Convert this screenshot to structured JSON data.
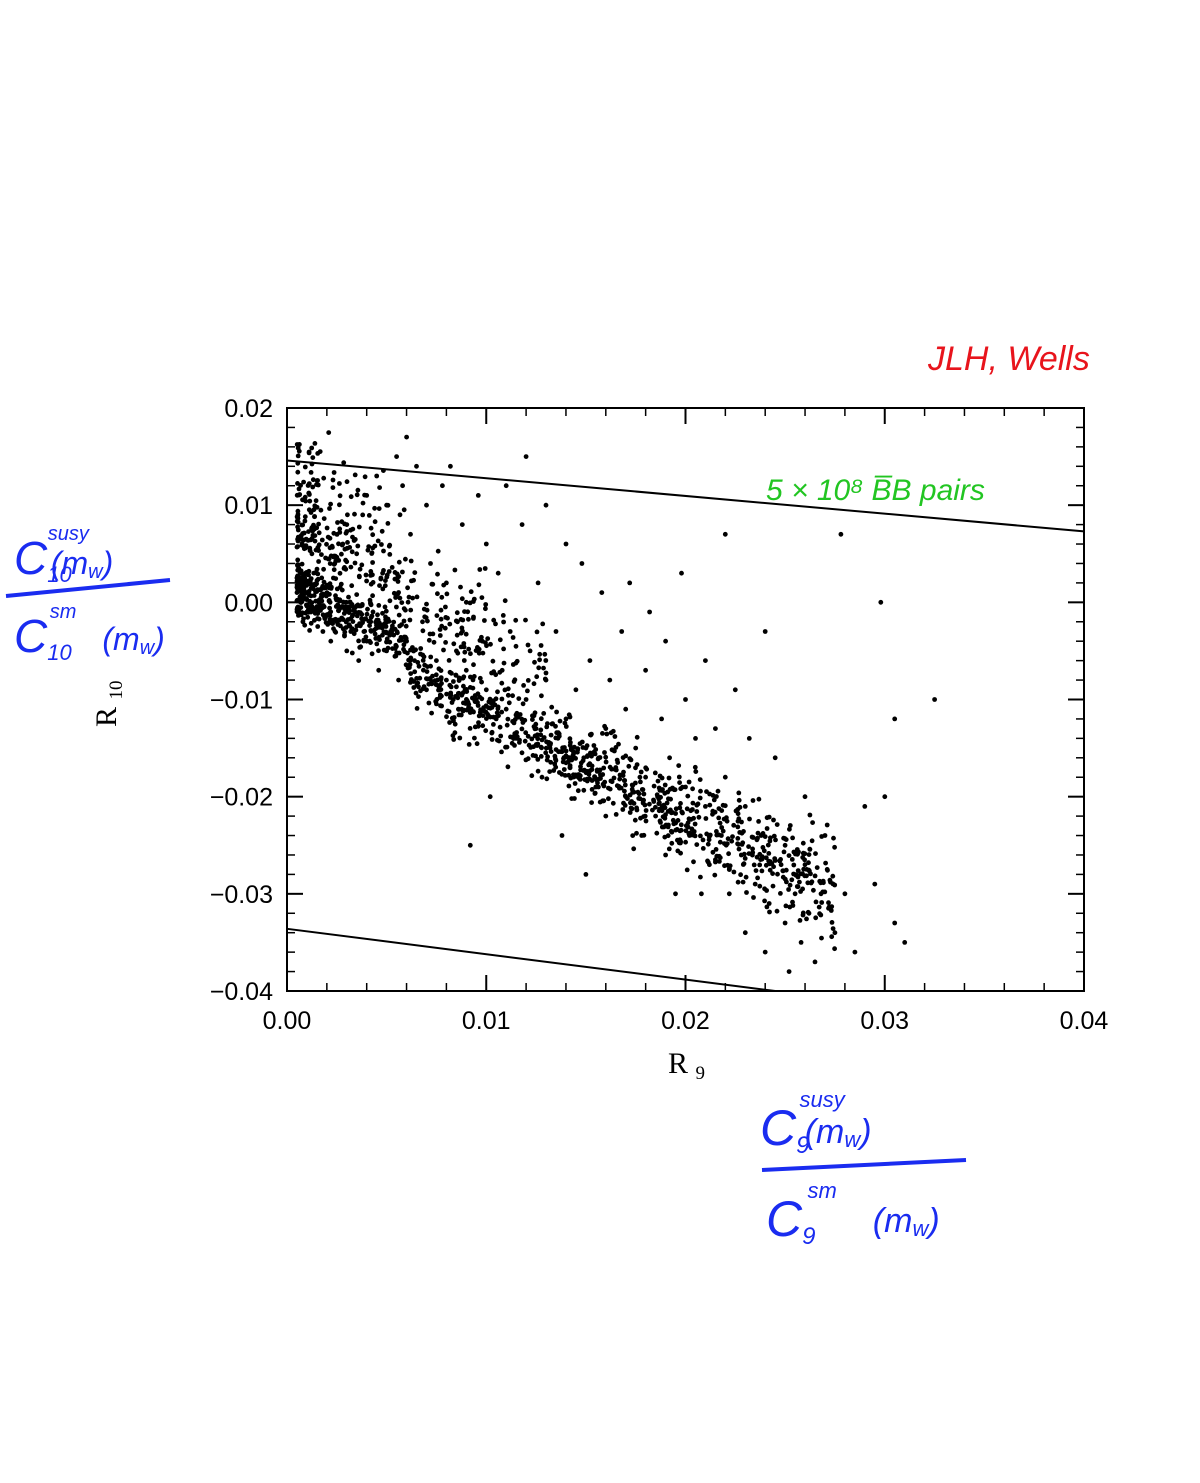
{
  "chart_data": {
    "type": "scatter",
    "xlabel": "R",
    "xlabel_subscript": "9",
    "ylabel": "R",
    "ylabel_subscript": "10",
    "xlim": [
      0.0,
      0.04
    ],
    "ylim": [
      -0.04,
      0.02
    ],
    "x_ticks": [
      0.0,
      0.01,
      0.02,
      0.03,
      0.04
    ],
    "x_tick_labels": [
      "0.00",
      "0.01",
      "0.02",
      "0.03",
      "0.04"
    ],
    "y_ticks": [
      -0.04,
      -0.03,
      -0.02,
      -0.01,
      0.0,
      0.01,
      0.02
    ],
    "y_tick_labels": [
      "−0.04",
      "−0.03",
      "−0.02",
      "−0.01",
      "0.00",
      "0.01",
      "0.02"
    ],
    "grid": false,
    "bound_lines": [
      {
        "label": "upper",
        "points": [
          [
            0.0,
            0.0146
          ],
          [
            0.04,
            0.0073
          ]
        ]
      },
      {
        "label": "lower",
        "points": [
          [
            0.0,
            -0.0336
          ],
          [
            0.0245,
            -0.04
          ]
        ]
      }
    ],
    "annotation": {
      "text": "5 × 10⁸ B̅B pairs",
      "color": "#22c522"
    },
    "points_cluster_approximation": [
      [
        0.0005,
        0.001
      ],
      [
        0.0008,
        -0.002
      ],
      [
        0.001,
        0.002
      ],
      [
        0.0012,
        -0.001
      ],
      [
        0.0015,
        0.003
      ],
      [
        0.0016,
        0.0
      ],
      [
        0.0018,
        -0.003
      ],
      [
        0.002,
        0.001
      ],
      [
        0.0022,
        -0.004
      ],
      [
        0.0024,
        0.004
      ],
      [
        0.0025,
        -0.002
      ],
      [
        0.0028,
        0.006
      ],
      [
        0.003,
        -0.005
      ],
      [
        0.003,
        0.008
      ],
      [
        0.0032,
        -0.003
      ],
      [
        0.0035,
        0.005
      ],
      [
        0.0036,
        -0.006
      ],
      [
        0.0038,
        0.009
      ],
      [
        0.004,
        -0.004
      ],
      [
        0.004,
        0.011
      ],
      [
        0.0042,
        -0.002
      ],
      [
        0.0045,
        0.013
      ],
      [
        0.0046,
        -0.007
      ],
      [
        0.0048,
        0.003
      ],
      [
        0.005,
        -0.005
      ],
      [
        0.005,
        0.01
      ],
      [
        0.0052,
        -0.003
      ],
      [
        0.0055,
        0.015
      ],
      [
        0.0056,
        -0.008
      ],
      [
        0.0058,
        0.012
      ],
      [
        0.006,
        -0.004
      ],
      [
        0.006,
        0.017
      ],
      [
        0.0062,
        0.007
      ],
      [
        0.0064,
        -0.006
      ],
      [
        0.0065,
        0.014
      ],
      [
        0.0068,
        -0.002
      ],
      [
        0.007,
        0.01
      ],
      [
        0.007,
        -0.009
      ],
      [
        0.0072,
        0.004
      ],
      [
        0.0075,
        -0.006
      ],
      [
        0.0078,
        0.012
      ],
      [
        0.008,
        -0.008
      ],
      [
        0.008,
        0.002
      ],
      [
        0.0082,
        0.014
      ],
      [
        0.0085,
        -0.005
      ],
      [
        0.0086,
        -0.011
      ],
      [
        0.0088,
        0.008
      ],
      [
        0.009,
        -0.007
      ],
      [
        0.009,
        0.0
      ],
      [
        0.0092,
        -0.025
      ],
      [
        0.0095,
        -0.01
      ],
      [
        0.0096,
        0.011
      ],
      [
        0.0098,
        -0.004
      ],
      [
        0.01,
        -0.009
      ],
      [
        0.01,
        0.006
      ],
      [
        0.0102,
        -0.02
      ],
      [
        0.0105,
        -0.012
      ],
      [
        0.0106,
        0.003
      ],
      [
        0.0108,
        -0.007
      ],
      [
        0.011,
        0.012
      ],
      [
        0.011,
        -0.011
      ],
      [
        0.0112,
        -0.003
      ],
      [
        0.0115,
        -0.014
      ],
      [
        0.0118,
        0.008
      ],
      [
        0.012,
        -0.01
      ],
      [
        0.012,
        0.015
      ],
      [
        0.0122,
        -0.005
      ],
      [
        0.0125,
        -0.013
      ],
      [
        0.0126,
        0.002
      ],
      [
        0.0128,
        -0.018
      ],
      [
        0.013,
        -0.008
      ],
      [
        0.013,
        0.01
      ],
      [
        0.0132,
        -0.015
      ],
      [
        0.0135,
        -0.003
      ],
      [
        0.0138,
        -0.024
      ],
      [
        0.014,
        -0.012
      ],
      [
        0.014,
        0.006
      ],
      [
        0.0142,
        -0.017
      ],
      [
        0.0145,
        -0.009
      ],
      [
        0.0148,
        0.004
      ],
      [
        0.015,
        -0.015
      ],
      [
        0.015,
        -0.028
      ],
      [
        0.0152,
        -0.006
      ],
      [
        0.0155,
        -0.019
      ],
      [
        0.0158,
        0.001
      ],
      [
        0.016,
        -0.013
      ],
      [
        0.016,
        -0.022
      ],
      [
        0.0162,
        -0.008
      ],
      [
        0.0165,
        -0.017
      ],
      [
        0.0168,
        -0.003
      ],
      [
        0.017,
        -0.02
      ],
      [
        0.017,
        -0.011
      ],
      [
        0.0172,
        0.002
      ],
      [
        0.0175,
        -0.015
      ],
      [
        0.0178,
        -0.024
      ],
      [
        0.018,
        -0.007
      ],
      [
        0.018,
        -0.018
      ],
      [
        0.0182,
        -0.001
      ],
      [
        0.0185,
        -0.022
      ],
      [
        0.0188,
        -0.012
      ],
      [
        0.019,
        -0.026
      ],
      [
        0.019,
        -0.004
      ],
      [
        0.0192,
        -0.016
      ],
      [
        0.0195,
        -0.03
      ],
      [
        0.0198,
        0.003
      ],
      [
        0.02,
        -0.019
      ],
      [
        0.02,
        -0.01
      ],
      [
        0.0202,
        -0.024
      ],
      [
        0.0205,
        -0.014
      ],
      [
        0.0208,
        -0.03
      ],
      [
        0.021,
        -0.021
      ],
      [
        0.021,
        -0.006
      ],
      [
        0.0212,
        -0.027
      ],
      [
        0.0215,
        -0.013
      ],
      [
        0.0218,
        -0.024
      ],
      [
        0.022,
        0.007
      ],
      [
        0.022,
        -0.018
      ],
      [
        0.0222,
        -0.03
      ],
      [
        0.0225,
        -0.009
      ],
      [
        0.0228,
        -0.026
      ],
      [
        0.023,
        -0.021
      ],
      [
        0.023,
        -0.034
      ],
      [
        0.0232,
        -0.014
      ],
      [
        0.0235,
        -0.029
      ],
      [
        0.0238,
        -0.024
      ],
      [
        0.024,
        -0.003
      ],
      [
        0.024,
        -0.036
      ],
      [
        0.0242,
        -0.031
      ],
      [
        0.0245,
        -0.016
      ],
      [
        0.0248,
        -0.027
      ],
      [
        0.025,
        -0.033
      ],
      [
        0.025,
        -0.025
      ],
      [
        0.0252,
        -0.038
      ],
      [
        0.0255,
        -0.03
      ],
      [
        0.0258,
        -0.035
      ],
      [
        0.026,
        -0.027
      ],
      [
        0.026,
        -0.02
      ],
      [
        0.0262,
        -0.032
      ],
      [
        0.0265,
        -0.037
      ],
      [
        0.0268,
        -0.03
      ],
      [
        0.027,
        -0.024
      ],
      [
        0.0275,
        -0.034
      ],
      [
        0.0278,
        0.007
      ],
      [
        0.028,
        -0.03
      ],
      [
        0.0285,
        -0.036
      ],
      [
        0.029,
        -0.021
      ],
      [
        0.0295,
        -0.029
      ],
      [
        0.0298,
        0.0
      ],
      [
        0.03,
        -0.02
      ],
      [
        0.0305,
        -0.012
      ],
      [
        0.0305,
        -0.033
      ],
      [
        0.031,
        -0.035
      ],
      [
        0.0325,
        -0.01
      ]
    ]
  },
  "annotations": {
    "authors": "JLH, Wells",
    "authors_color": "#e8141c",
    "handwriting_color": "#1a2cf0",
    "y_ratio": {
      "numerator": "C",
      "numerator_sub": "10",
      "numerator_sup": "susy",
      "numerator_arg": "(m",
      "numerator_arg_sub": "w",
      "denominator": "C",
      "denominator_sub": "10",
      "denominator_sup": "sm",
      "denominator_arg": "(m",
      "denominator_arg_sub": "w"
    },
    "x_ratio": {
      "numerator": "C",
      "numerator_sub": "9",
      "numerator_sup": "susy",
      "numerator_arg": "(m",
      "numerator_arg_sub": "w",
      "denominator": "C",
      "denominator_sub": "9",
      "denominator_sup": "sm",
      "denominator_arg": "(m",
      "denominator_arg_sub": "w"
    }
  }
}
